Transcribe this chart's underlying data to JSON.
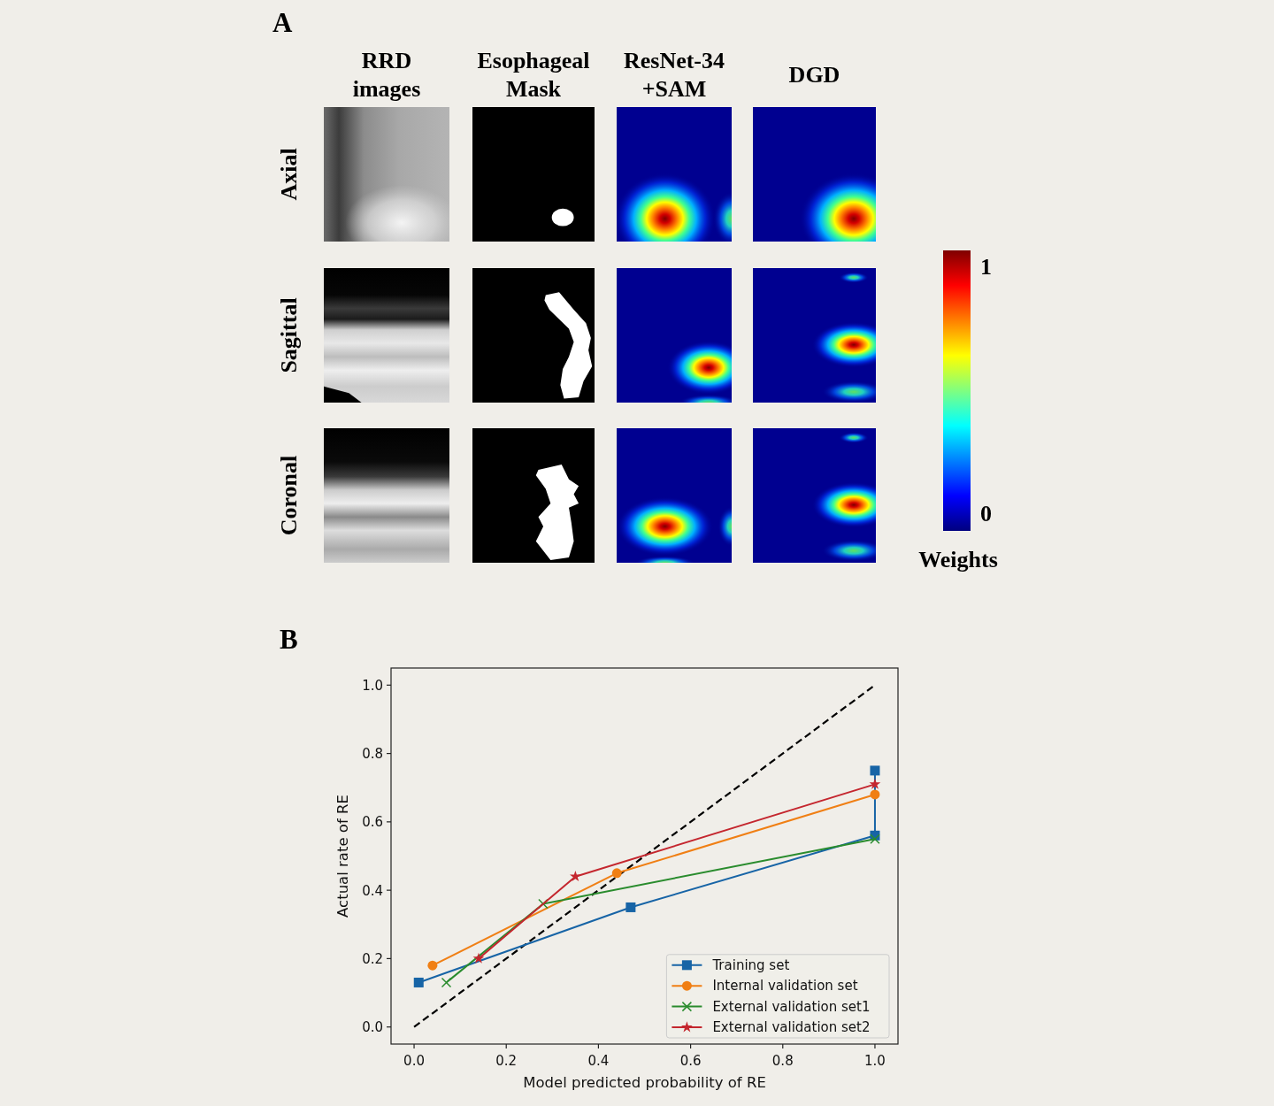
{
  "chart_data": [
    {
      "type": "other",
      "title": "A",
      "categories": [
        "RRD images",
        "Esophageal Mask",
        "ResNet-34 +SAM",
        "DGD"
      ],
      "y_categories": [
        "Axial",
        "Sagittal",
        "Coronal"
      ],
      "clabel": "Weights",
      "annotations": [
        "1",
        "0"
      ]
    },
    {
      "type": "line",
      "title": "B",
      "xlabel": "Model predicted probability of RE",
      "ylabel": "Actual rate of RE",
      "xlim": [
        -0.05,
        1.05
      ],
      "ylim": [
        -0.05,
        1.05
      ],
      "xticks": [
        {
          "value": 0,
          "label": "0.0"
        },
        0.2,
        0.4,
        0.6,
        0.8,
        {
          "value": 1,
          "label": "1.0"
        }
      ],
      "yticks": [
        {
          "value": 0,
          "label": "0.0"
        },
        0.2,
        0.4,
        0.6,
        0.8,
        {
          "value": 1,
          "label": "1.0"
        }
      ],
      "legend": "bottom right",
      "series": [
        {
          "color": "#000000",
          "line_style": "dashed",
          "marker": "none",
          "x": [
            0,
            1
          ],
          "values": [
            0,
            1
          ]
        },
        {
          "name": "Training set",
          "color": "#1764a6",
          "marker": "square",
          "x": [
            0.01,
            0.47,
            1,
            1
          ],
          "values": [
            0.13,
            0.35,
            0.56,
            0.75
          ]
        },
        {
          "name": "Internal validation set",
          "color": "#f07f14",
          "marker": "circle",
          "x": [
            0.04,
            0.44,
            1
          ],
          "values": [
            0.18,
            0.45,
            0.68
          ]
        },
        {
          "name": "External validation set1",
          "color": "#2a8c2e",
          "marker": "cross",
          "x": [
            0.07,
            0.28,
            1
          ],
          "values": [
            0.13,
            0.36,
            0.55
          ]
        },
        {
          "name": "External validation set2",
          "color": "#c4262e",
          "marker": "star",
          "x": [
            0.14,
            0.35,
            1
          ],
          "values": [
            0.2,
            0.44,
            0.71
          ]
        }
      ]
    }
  ]
}
